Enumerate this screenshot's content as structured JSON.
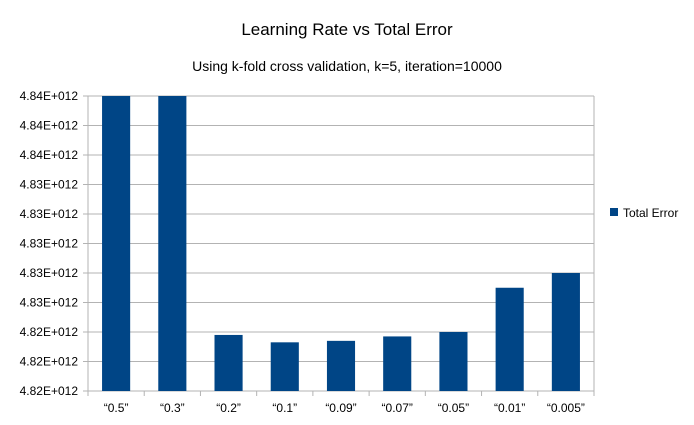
{
  "chart_data": {
    "type": "bar",
    "title": "Learning Rate vs Total Error",
    "subtitle": "Using k-fold cross validation, k=5, iteration=10000",
    "categories": [
      "“0.5”",
      "“0.3”",
      "“0.2”",
      "“0.1”",
      "“0.09”",
      "“0.07”",
      "“0.05”",
      "“0.01”",
      "“0.005”"
    ],
    "series": [
      {
        "name": "Total Error",
        "color": "#004586",
        "values": [
          10,
          10,
          1.9,
          1.65,
          1.7,
          1.85,
          2.0,
          3.5,
          4.0
        ]
      }
    ],
    "ylim": [
      0,
      10
    ],
    "ytick_values": [
      0,
      1,
      2,
      3,
      4,
      5,
      6,
      7,
      8,
      9,
      10
    ],
    "ytick_labels": [
      "4.82E+012",
      "4.82E+012",
      "4.82E+012",
      "4.83E+012",
      "4.83E+012",
      "4.83E+012",
      "4.83E+012",
      "4.83E+012",
      "4.84E+012",
      "4.84E+012",
      "4.84E+012"
    ],
    "value_note": "y values in relative axis units (gridline steps); tick labels are rounded and identical across adjacent lines",
    "xlabel": "",
    "ylabel": "",
    "grid": true,
    "legend": "right"
  }
}
